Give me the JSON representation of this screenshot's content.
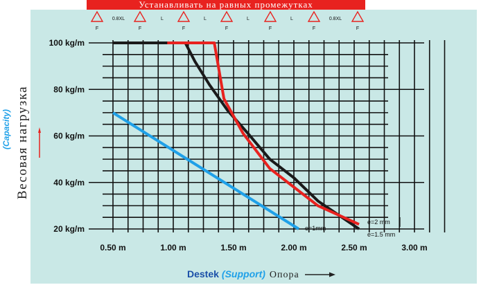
{
  "banner_text": "Устанавливать на равных промежутках",
  "support_scheme": [
    "F",
    "0.8XL",
    "F",
    "L",
    "F",
    "L",
    "F",
    "L",
    "F",
    "L",
    "F",
    "0.8XL",
    "F"
  ],
  "axis": {
    "y_title_ru": "Весовая нагрузка",
    "y_title_en": "(Capacity)",
    "x_title_en": "Destek",
    "x_title_en2": "(Support)",
    "x_title_ru": "Опора"
  },
  "chart_data": {
    "type": "line",
    "x_ticks": [
      {
        "value": 0.5,
        "label": "0.50 m"
      },
      {
        "value": 1.0,
        "label": "1.00 m"
      },
      {
        "value": 1.5,
        "label": "1.50 m"
      },
      {
        "value": 2.0,
        "label": "2.00 m"
      },
      {
        "value": 2.5,
        "label": "2.50 m"
      },
      {
        "value": 3.0,
        "label": "3.00 m"
      }
    ],
    "y_ticks": [
      {
        "value": 20,
        "label": "20 kg/m"
      },
      {
        "value": 40,
        "label": "40 kg/m"
      },
      {
        "value": 60,
        "label": "60 kg/m"
      },
      {
        "value": 80,
        "label": "80 kg/m"
      },
      {
        "value": 100,
        "label": "100 kg/m"
      }
    ],
    "xlim": [
      0.5,
      3.25
    ],
    "ylim": [
      20,
      100
    ],
    "grid": true,
    "series": [
      {
        "name": "e=2 mm",
        "color": "#e8221f",
        "points": [
          [
            0.95,
            100
          ],
          [
            1.34,
            100
          ],
          [
            1.42,
            76
          ],
          [
            1.58,
            61
          ],
          [
            1.8,
            46
          ],
          [
            2.0,
            38
          ],
          [
            2.2,
            30
          ],
          [
            2.54,
            22
          ]
        ]
      },
      {
        "name": "e=1.5 mm",
        "color": "#1a1a1a",
        "points": [
          [
            0.5,
            100
          ],
          [
            1.1,
            100
          ],
          [
            1.18,
            92
          ],
          [
            1.3,
            82
          ],
          [
            1.45,
            71
          ],
          [
            1.62,
            61
          ],
          [
            1.8,
            50
          ],
          [
            2.0,
            42
          ],
          [
            2.2,
            32
          ],
          [
            2.54,
            20
          ]
        ]
      },
      {
        "name": "e=1mm",
        "color": "#1fa0e8",
        "points": [
          [
            0.5,
            70
          ],
          [
            2.04,
            20
          ]
        ]
      }
    ]
  }
}
